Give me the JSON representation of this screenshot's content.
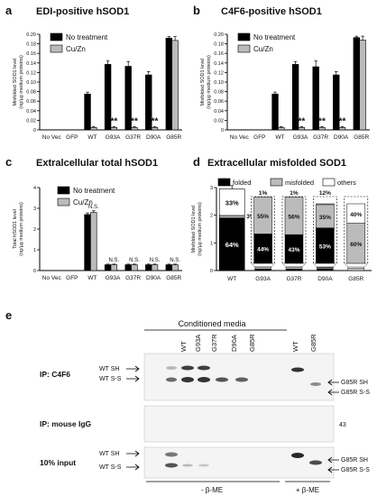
{
  "panels": {
    "a": {
      "letter": "a",
      "title": "EDI-positive hSOD1"
    },
    "b": {
      "letter": "b",
      "title": "C4F6-positive hSOD1"
    },
    "c": {
      "letter": "c",
      "title": "Extralcellular total hSOD1"
    },
    "d": {
      "letter": "d",
      "title": "Extracellular misfolded SOD1"
    },
    "e": {
      "letter": "e",
      "title": "Conditioned media"
    }
  },
  "chart_data": [
    {
      "type": "bar",
      "panel": "a",
      "title": "EDI-positive hSOD1",
      "ylabel": "Misfolded SOD1 level",
      "ylabel2": "(ng/µg medium proteins)",
      "ylim": [
        0,
        0.2
      ],
      "yticks": [
        "0",
        "0.02",
        "0.04",
        "0.06",
        "0.08",
        "0.10",
        "0.12",
        "0.14",
        "0.16",
        "0.18",
        "0.20"
      ],
      "categories": [
        "No Vec",
        "GFP",
        "WT",
        "G93A",
        "G37R",
        "D90A",
        "G85R"
      ],
      "series": [
        {
          "name": "No treatment",
          "color": "#000000",
          "values": [
            0,
            0,
            0.075,
            0.137,
            0.133,
            0.115,
            0.192
          ],
          "errors": [
            0,
            0,
            0.004,
            0.007,
            0.01,
            0.007,
            0.003
          ]
        },
        {
          "name": "Cu/Zn",
          "color": "#bbbbbb",
          "values": [
            0,
            0,
            0.005,
            0.005,
            0.005,
            0.005,
            0.187
          ],
          "errors": [
            0,
            0,
            0.002,
            0.002,
            0.002,
            0.002,
            0.008
          ]
        }
      ],
      "annotations": [
        "**",
        "**",
        "**",
        "**"
      ]
    },
    {
      "type": "bar",
      "panel": "b",
      "title": "C4F6-positive hSOD1",
      "ylabel": "Misfolded SOD1 level",
      "ylabel2": "(ng/µg medium proteins)",
      "ylim": [
        0,
        0.2
      ],
      "yticks": [
        "0",
        "0.02",
        "0.04",
        "0.06",
        "0.08",
        "0.10",
        "0.12",
        "0.14",
        "0.16",
        "0.18",
        "0.20"
      ],
      "categories": [
        "No Vec",
        "GFP",
        "WT",
        "G93A",
        "G37R",
        "D90A",
        "G85R"
      ],
      "series": [
        {
          "name": "No treatment",
          "color": "#000000",
          "values": [
            0,
            0,
            0.075,
            0.137,
            0.132,
            0.115,
            0.193
          ],
          "errors": [
            0,
            0,
            0.004,
            0.006,
            0.012,
            0.007,
            0.003
          ]
        },
        {
          "name": "Cu/Zn",
          "color": "#bbbbbb",
          "values": [
            0,
            0,
            0.005,
            0.005,
            0.005,
            0.005,
            0.188
          ],
          "errors": [
            0,
            0,
            0.002,
            0.002,
            0.002,
            0.002,
            0.008
          ]
        }
      ],
      "annotations": [
        "**",
        "**",
        "**",
        "**"
      ]
    },
    {
      "type": "bar",
      "panel": "c",
      "title": "Extralcellular total hSOD1",
      "ylabel": "Total hSOD1 level",
      "ylabel2": "(ng/µg medium proteins)",
      "ylim": [
        0,
        4
      ],
      "yticks": [
        "0",
        "1",
        "2",
        "3",
        "4"
      ],
      "categories": [
        "No Vec",
        "GFP",
        "WT",
        "G93A",
        "G37R",
        "D90A",
        "G85R"
      ],
      "series": [
        {
          "name": "No treatment",
          "color": "#000000",
          "values": [
            0,
            0,
            2.7,
            0.28,
            0.28,
            0.28,
            0.28
          ],
          "errors": [
            0,
            0,
            0.08,
            0.03,
            0.03,
            0.03,
            0.03
          ]
        },
        {
          "name": "Cu/Zn",
          "color": "#bbbbbb",
          "values": [
            0,
            0,
            2.8,
            0.28,
            0.28,
            0.28,
            0.28
          ],
          "errors": [
            0,
            0,
            0.08,
            0.03,
            0.03,
            0.03,
            0.03
          ]
        }
      ],
      "annotations": [
        "N.S.",
        "N.S.",
        "N.S.",
        "N.S.",
        "N.S."
      ]
    },
    {
      "type": "bar",
      "panel": "d",
      "title": "Extracellular misfolded SOD1",
      "ylabel": "Misfolded SOD1 level",
      "ylabel2": "(ng/µg medium proteins)",
      "ylim": [
        0,
        3
      ],
      "yticks": [
        "0",
        "1",
        "2",
        "3"
      ],
      "categories": [
        "WT",
        "G93A",
        "G37R",
        "D90A",
        "G85R"
      ],
      "legend": [
        {
          "name": "folded",
          "color": "#000000"
        },
        {
          "name": "misfolded",
          "color": "#bbbbbb"
        },
        {
          "name": "others",
          "color": "#ffffff"
        }
      ],
      "wt_stack": {
        "folded": 1.9,
        "misfolded": 0.09,
        "others": 0.96,
        "total": 2.95,
        "labels": [
          "64%",
          "3%",
          "33%"
        ]
      },
      "inset_stacks": [
        {
          "category": "G93A",
          "folded": 44,
          "misfolded": 55,
          "others": 1,
          "labels": [
            "44%",
            "55%",
            "1%"
          ]
        },
        {
          "category": "G37R",
          "folded": 43,
          "misfolded": 56,
          "others": 1,
          "labels": [
            "43%",
            "56%",
            "1%"
          ]
        },
        {
          "category": "D90A",
          "folded": 53,
          "misfolded": 35,
          "others": 12,
          "labels": [
            "53%",
            "35%",
            "12%"
          ]
        },
        {
          "category": "G85R",
          "folded": 0,
          "misfolded": 60,
          "others": 40,
          "labels": [
            "60%",
            "40%"
          ]
        }
      ]
    }
  ],
  "blot": {
    "header": "Conditioned media",
    "lanes_group1": [
      "WT",
      "G93A",
      "G37R",
      "D90A",
      "G85R"
    ],
    "lanes_group2": [
      "WT",
      "G85R"
    ],
    "rows": [
      {
        "label": "IP: C4F6",
        "left_bands": [
          "WT SH",
          "WT S-S"
        ],
        "right_bands": [
          "G85R SH",
          "G85R S-S"
        ]
      },
      {
        "label": "IP: mouse IgG",
        "marker": "43"
      },
      {
        "label": "10% input",
        "left_bands": [
          "WT SH",
          "WT S-S"
        ],
        "right_bands": [
          "G85R SH",
          "G85R S-S"
        ]
      }
    ],
    "bottom_left": "- β-ME",
    "bottom_right": "+ β-ME"
  }
}
